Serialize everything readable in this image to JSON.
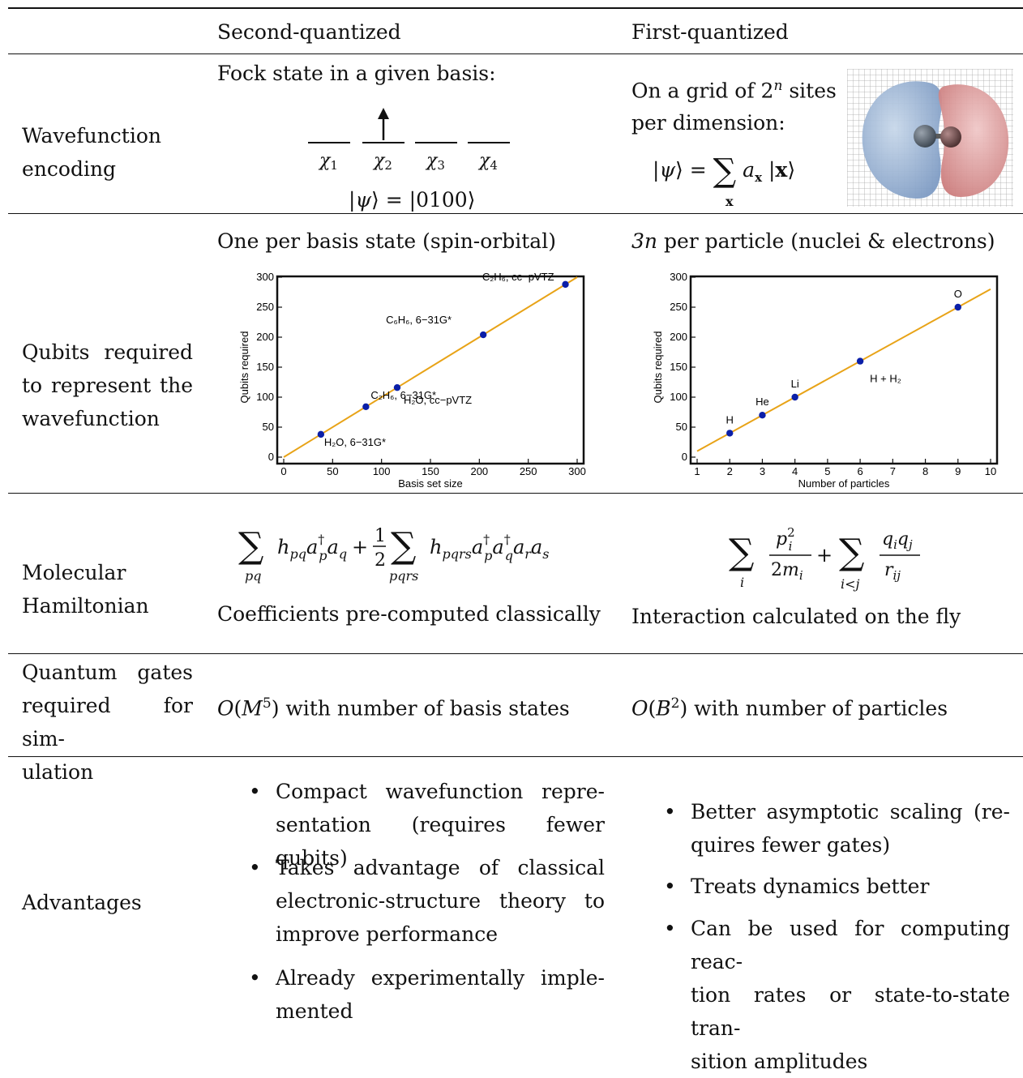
{
  "header": {
    "col_second": "Second-quantized",
    "col_first": "First-quantized"
  },
  "rows": {
    "wavefunction": {
      "label_lines": [
        "Wavefunction",
        "encoding"
      ],
      "second": {
        "intro": "Fock state in a given basis:",
        "orbitals": [
          "χ1",
          "χ2",
          "χ3",
          "χ4"
        ],
        "occupied_index": 2,
        "state": "|ψ⟩ = |0100⟩"
      },
      "first": {
        "intro_line1": "On a grid of 2ⁿ sites",
        "intro_line2": "per dimension:",
        "state": "|ψ⟩ = Σx ax |x⟩"
      }
    },
    "qubits": {
      "label_lines": [
        "Qubits  required",
        "to  represent  the",
        "wavefunction"
      ],
      "second": {
        "caption": "One per basis state (spin-orbital)"
      },
      "first": {
        "caption": "3n per particle (nuclei & electrons)"
      }
    },
    "hamiltonian": {
      "label_lines": [
        "Molecular",
        "Hamiltonian"
      ],
      "second": {
        "note": "Coefficients pre-computed classically"
      },
      "first": {
        "note": "Interaction calculated on the fly"
      }
    },
    "gates": {
      "label_lines": [
        "Quantum   gates",
        "required for sim-",
        "ulation"
      ],
      "second": {
        "scaling": "O(M⁵) with number of basis states"
      },
      "first": {
        "scaling": "O(B²) with number of particles"
      }
    },
    "advantages": {
      "label": "Advantages",
      "second": [
        [
          "Compact  wavefunction  repre-",
          "sentation (requires fewer qubits)"
        ],
        [
          "Takes  advantage  of  classical",
          "electronic-structure  theory  to",
          "improve performance"
        ],
        [
          "Already  experimentally  imple-",
          "mented"
        ]
      ],
      "first": [
        [
          "Better asymptotic scaling (re-",
          "quires fewer gates)"
        ],
        [
          "Treats dynamics better"
        ],
        [
          "Can be used for computing reac-",
          "tion rates or state-to-state tran-",
          "sition amplitudes"
        ]
      ]
    }
  },
  "chart_data": [
    {
      "type": "scatter",
      "title": "",
      "xlabel": "Basis set size",
      "ylabel": "Qubits required",
      "xlim": [
        0,
        300
      ],
      "ylim": [
        0,
        300
      ],
      "xticks": [
        0,
        50,
        100,
        150,
        200,
        250,
        300
      ],
      "yticks": [
        0,
        50,
        100,
        150,
        200,
        250,
        300
      ],
      "fit_line": {
        "slope": 1,
        "intercept": 0,
        "color": "#e8a317"
      },
      "point_color": "#0b1fa8",
      "points": [
        {
          "x": 38,
          "y": 38,
          "label": "H₂O, 6−31G*"
        },
        {
          "x": 84,
          "y": 84,
          "label": "C₂H₆, 6−31G*"
        },
        {
          "x": 116,
          "y": 116,
          "label": "H₂O, cc−pVTZ"
        },
        {
          "x": 204,
          "y": 204,
          "label": "C₆H₆, 6−31G*"
        },
        {
          "x": 288,
          "y": 288,
          "label": "C₂H₆, cc−pVTZ"
        }
      ]
    },
    {
      "type": "scatter",
      "title": "",
      "xlabel": "Number of particles",
      "ylabel": "Qubits required",
      "xlim": [
        1,
        10
      ],
      "ylim": [
        0,
        300
      ],
      "xticks": [
        1,
        2,
        3,
        4,
        5,
        6,
        7,
        8,
        9,
        10
      ],
      "yticks": [
        0,
        50,
        100,
        150,
        200,
        250,
        300
      ],
      "fit_line": {
        "slope": 30,
        "intercept": -20,
        "color": "#e8a317"
      },
      "point_color": "#0b1fa8",
      "points": [
        {
          "x": 2,
          "y": 40,
          "label": "H"
        },
        {
          "x": 3,
          "y": 70,
          "label": "He"
        },
        {
          "x": 4,
          "y": 100,
          "label": "Li"
        },
        {
          "x": 6,
          "y": 160,
          "label": "H + H₂"
        },
        {
          "x": 9,
          "y": 250,
          "label": "O"
        }
      ]
    }
  ]
}
